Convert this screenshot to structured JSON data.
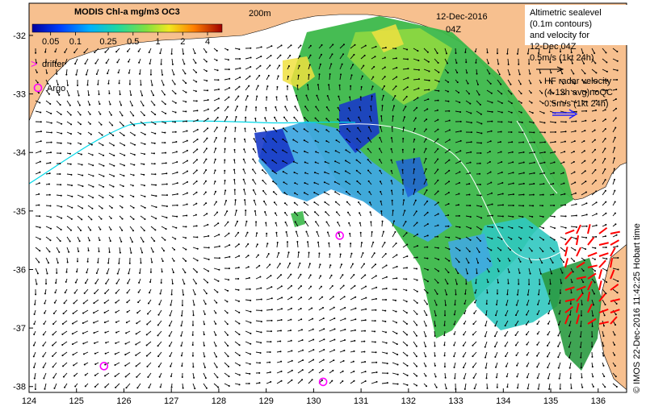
{
  "chart_data": {
    "type": "map",
    "xlim": [
      124,
      136.6
    ],
    "ylim": [
      -38.1,
      -31.45
    ],
    "x_ticks": [
      124,
      125,
      126,
      127,
      128,
      129,
      130,
      131,
      132,
      133,
      134,
      135,
      136
    ],
    "y_ticks": [
      -32,
      -33,
      -34,
      -35,
      -36,
      -37,
      -38
    ],
    "colorbar": {
      "title": "MODIS Chl-a mg/m3 OC3",
      "scale": "log",
      "tick_values": [
        0.05,
        0.1,
        0.25,
        0.5,
        1,
        2,
        4
      ],
      "tick_labels": [
        "0.05",
        "0.1",
        "0.25",
        "0.5",
        "1",
        "2",
        "4"
      ]
    },
    "depth_label": "200m",
    "date": "12-Dec-2016",
    "time": "04Z",
    "legend": {
      "drifter": "drifter",
      "argo": "Argo",
      "altimetry_lines": [
        "Altimetric sealevel",
        "(0.1m contours)",
        "and velocity for",
        "12-Dec 04Z"
      ],
      "altimetry_scale": "0.5m/s (1kt 24h)",
      "hf_lines": [
        "HF radar velocity",
        "(4-12h avg)noQC"
      ],
      "hf_scale": "0.5m/s (1kt 24h)"
    },
    "argo_floats": [
      {
        "lon": 130.55,
        "lat": -35.42
      },
      {
        "lon": 125.58,
        "lat": -37.65
      },
      {
        "lon": 130.2,
        "lat": -37.92
      }
    ],
    "credit": "© IMOS 22-Dec-2016 11:42:25 Hobart time",
    "colors": {
      "land": "#f7c08f",
      "argo": "#ff00ff",
      "drifter": "#ff00ff",
      "ssh_contour": "#ffffff",
      "track": "#00d8e8",
      "hf_radar": "#ff0000",
      "altimetry_vector": "#000000",
      "chl_low": "#1030c0",
      "chl_mid": "#28a848",
      "chl_high": "#e8e030"
    }
  }
}
